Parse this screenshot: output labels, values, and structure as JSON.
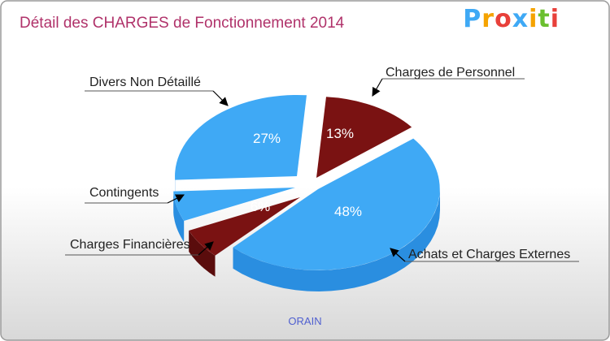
{
  "chart_data": {
    "type": "pie",
    "title": "Détail des CHARGES de Fonctionnement 2014",
    "subtitle": "ORAIN",
    "categories": [
      "Charges de Personnel",
      "Achats et Charges Externes",
      "Charges Financières",
      "Contingents",
      "Divers Non Détaillé"
    ],
    "values": [
      13,
      48,
      6,
      6,
      27
    ],
    "value_labels": [
      "13%",
      "48%",
      "6%",
      "6%",
      "27%"
    ],
    "colors": [
      "#7a1212",
      "#3fa9f5",
      "#7a1212",
      "#3fa9f5",
      "#3fa9f5"
    ],
    "side_colors": [
      "#5a0c0c",
      "#2a8ee0",
      "#5a0c0c",
      "#2a8ee0",
      "#2a8ee0"
    ],
    "exploded": true,
    "style": "3d",
    "legend": "callouts"
  },
  "logo": {
    "text": "Proxiti",
    "letter_colors": [
      "#3fa9f5",
      "#f5a300",
      "#e8403a",
      "#3fa9f5",
      "#f5a300",
      "#6bbf2f",
      "#e8403a"
    ]
  },
  "colors": {
    "title": "#b0326a",
    "subtitle": "#5060d0",
    "frame": "#9a9a9a",
    "background_top": "#ffffff",
    "background_bottom": "#d8d8d8"
  }
}
